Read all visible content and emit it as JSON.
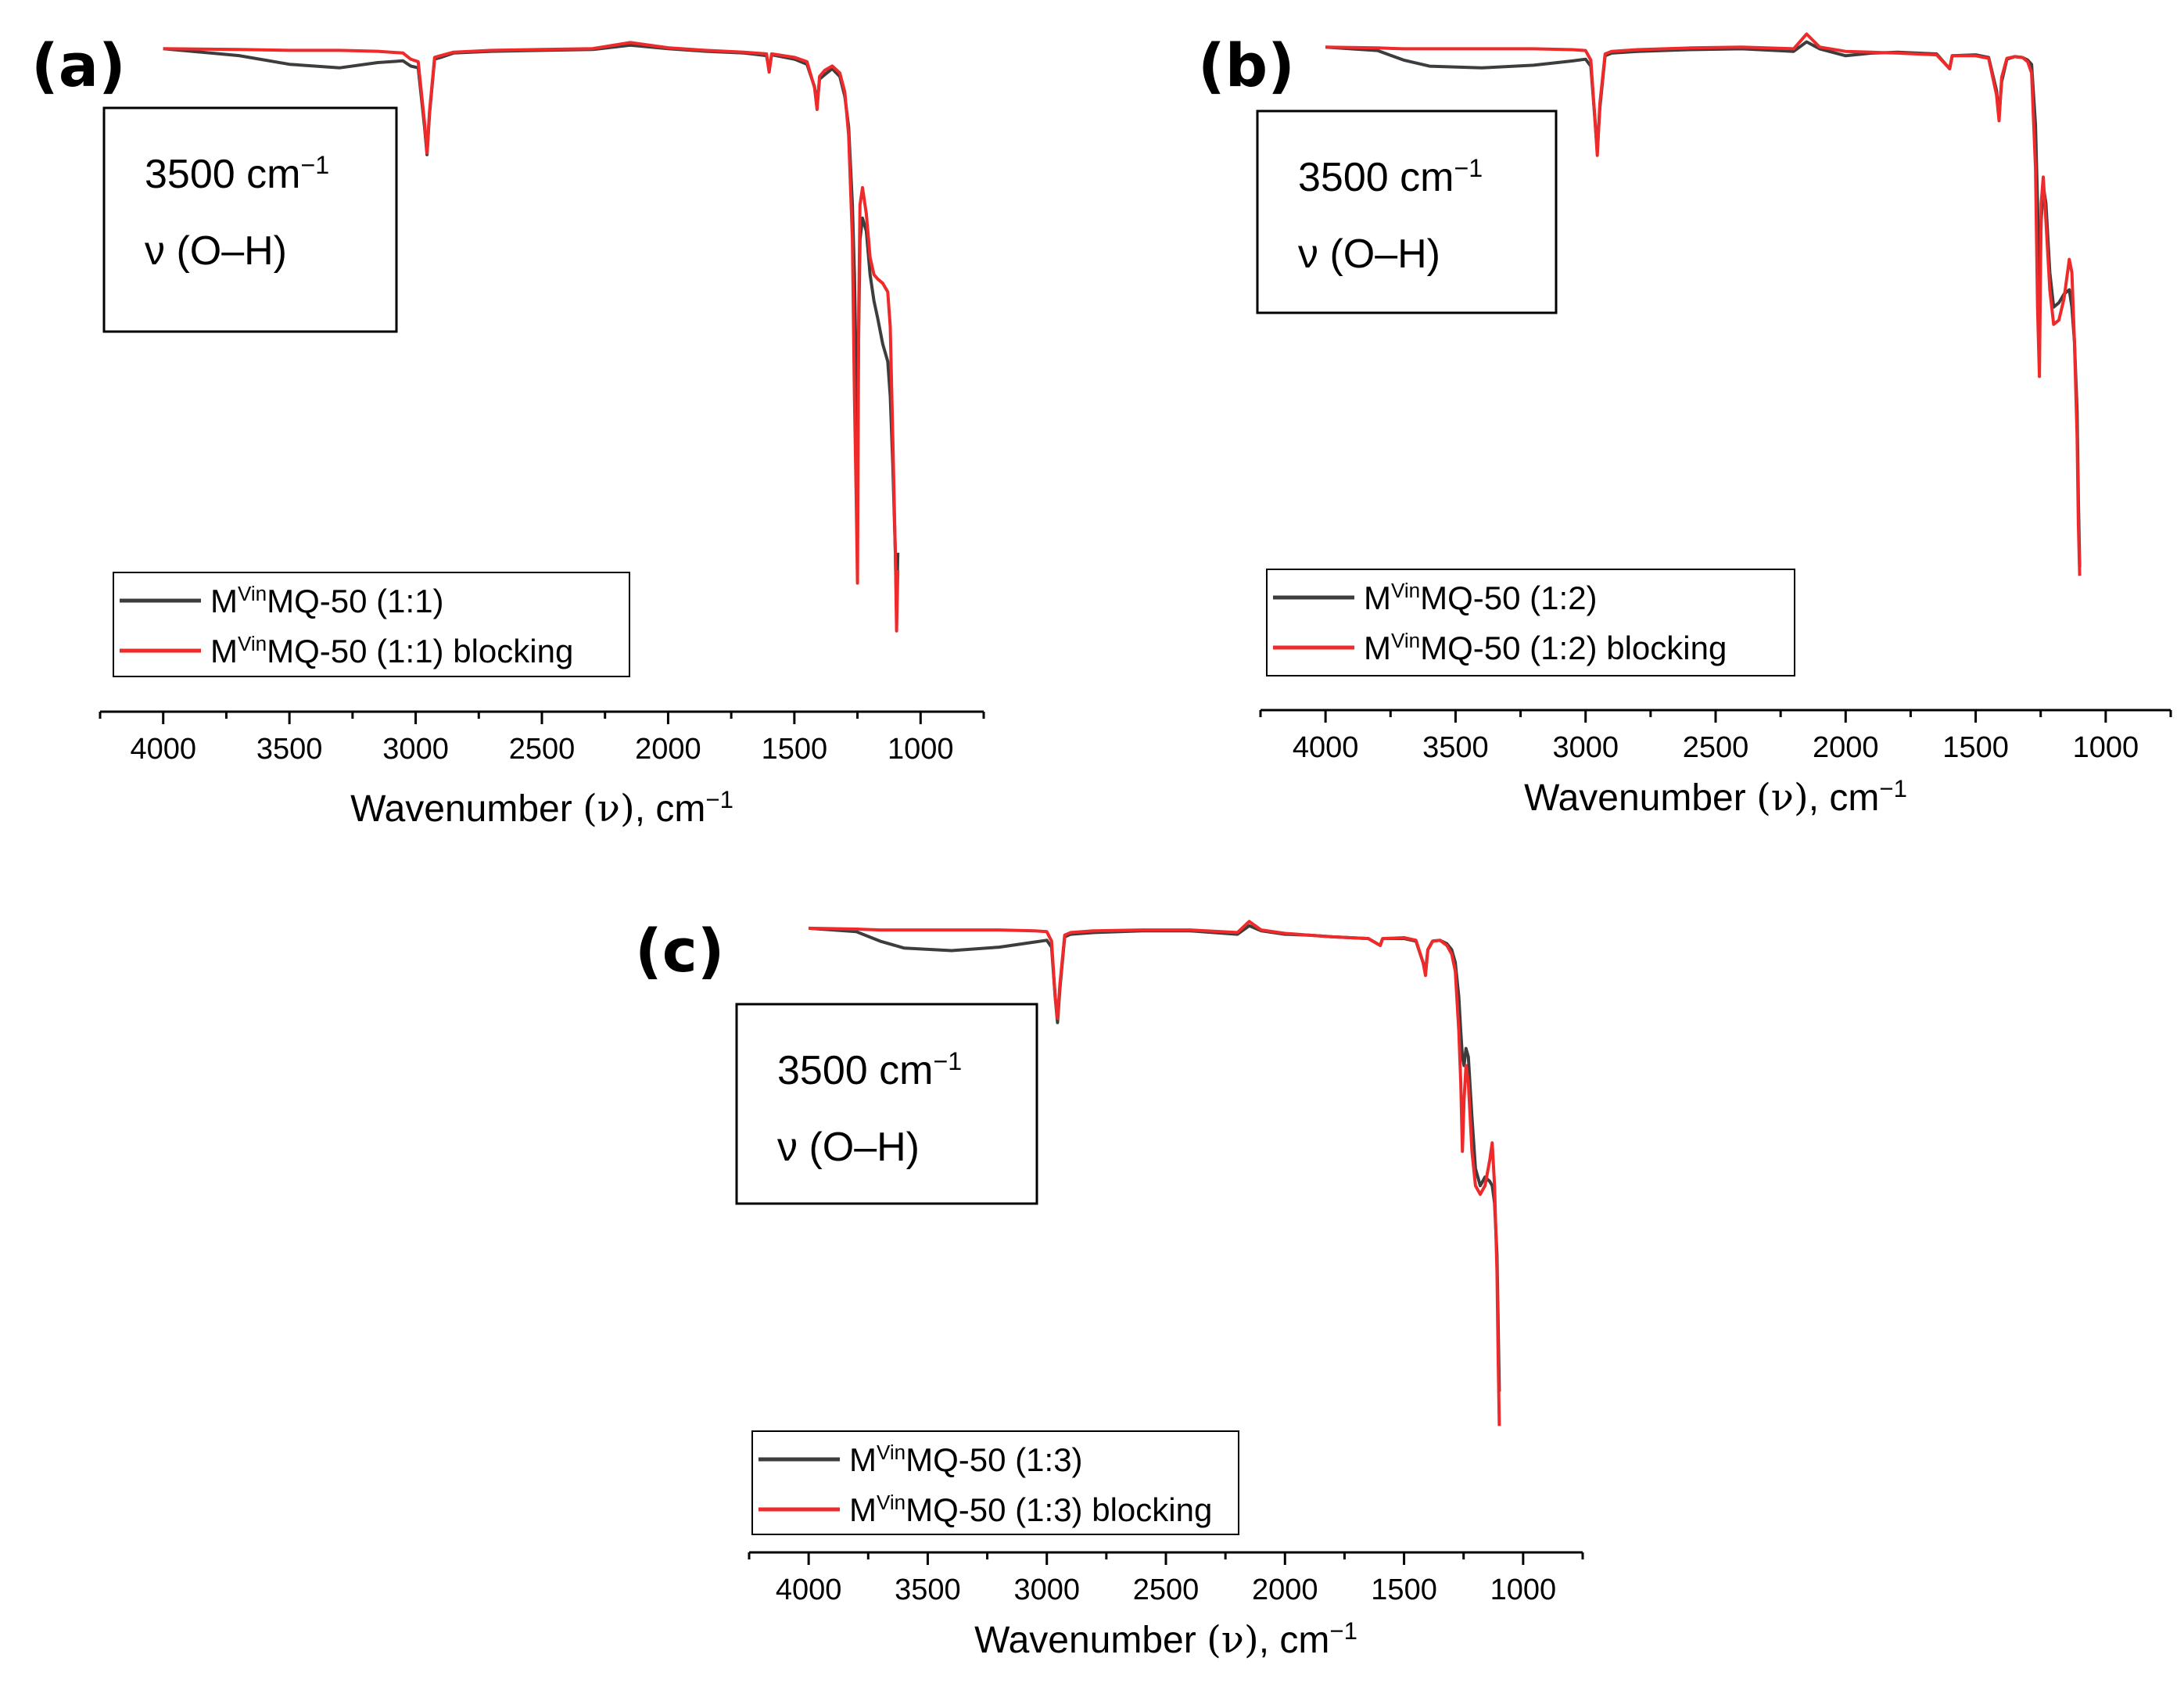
{
  "figure": {
    "colors": {
      "series_0": "#3d3d3d",
      "series_1": "#ee2a2a",
      "axis": "#000000"
    }
  },
  "chart_data": [
    {
      "panel_label": "(a)",
      "type": "line",
      "xlabel": {
        "main": "Wavenumber ",
        "symbol": "(ν)",
        "unit": ", cm",
        "unit_sup": "−1"
      },
      "xlim": [
        4250,
        750
      ],
      "xticks": [
        4000,
        3500,
        3000,
        2500,
        2000,
        1500,
        1000
      ],
      "y_axis_shown": false,
      "grid": false,
      "legend_position": "lower-left",
      "annotation": {
        "line1": "3500 cm",
        "line1_sup": "−1",
        "line2": "ν (O–H)"
      },
      "series": [
        {
          "name": "MVinMQ-50 (1:1)",
          "legend": {
            "base": "M",
            "sup": "Vin",
            "rest": "MQ-50 (1:1)"
          },
          "color": "#3d3d3d",
          "x": [
            4000,
            3700,
            3500,
            3300,
            3150,
            3050,
            3020,
            2990,
            2965,
            2955,
            2945,
            2925,
            2900,
            2850,
            2700,
            2500,
            2300,
            2150,
            2000,
            1850,
            1700,
            1610,
            1600,
            1590,
            1500,
            1450,
            1420,
            1410,
            1400,
            1380,
            1350,
            1320,
            1300,
            1285,
            1270,
            1262,
            1255,
            1250,
            1245,
            1240,
            1230,
            1215,
            1200,
            1185,
            1170,
            1150,
            1130,
            1120,
            1110,
            1100,
            1095,
            1090
          ],
          "y": [
            100.0,
            99.2,
            98.2,
            97.8,
            98.4,
            98.6,
            98.0,
            97.8,
            91.0,
            87.8,
            92.5,
            98.8,
            99.0,
            99.5,
            99.7,
            99.8,
            99.9,
            100.4,
            100.0,
            99.7,
            99.5,
            99.2,
            97.5,
            99.3,
            98.8,
            98.2,
            95.6,
            93.5,
            96.5,
            97.0,
            97.7,
            96.8,
            94.5,
            91.0,
            82.0,
            74.0,
            62.0,
            56.0,
            68.0,
            78.0,
            80.5,
            79.0,
            74.0,
            71.0,
            69.0,
            66.0,
            64.0,
            60.0,
            52.0,
            42.0,
            35.0,
            42.0
          ]
        },
        {
          "name": "MVinMQ-50 (1:1) blocking",
          "legend": {
            "base": "M",
            "sup": "Vin",
            "rest": "MQ-50 (1:1) blocking"
          },
          "color": "#ee2a2a",
          "x": [
            4000,
            3700,
            3500,
            3300,
            3150,
            3050,
            3020,
            2990,
            2965,
            2955,
            2945,
            2925,
            2900,
            2850,
            2700,
            2500,
            2300,
            2150,
            2000,
            1850,
            1700,
            1610,
            1600,
            1590,
            1500,
            1450,
            1420,
            1410,
            1400,
            1380,
            1350,
            1320,
            1300,
            1285,
            1270,
            1262,
            1255,
            1250,
            1245,
            1240,
            1230,
            1215,
            1200,
            1185,
            1170,
            1150,
            1130,
            1120,
            1110,
            1100,
            1095,
            1090
          ],
          "y": [
            100.0,
            99.9,
            99.8,
            99.8,
            99.7,
            99.5,
            98.8,
            98.5,
            91.5,
            88.0,
            92.8,
            99.0,
            99.2,
            99.6,
            99.8,
            99.9,
            100.0,
            100.7,
            100.1,
            99.8,
            99.6,
            99.4,
            97.3,
            99.4,
            99.0,
            98.5,
            95.5,
            93.0,
            96.8,
            97.5,
            98.0,
            97.2,
            95.0,
            90.0,
            78.0,
            60.0,
            48.0,
            38.5,
            70.0,
            82.0,
            84.0,
            81.0,
            76.0,
            74.0,
            73.5,
            73.0,
            72.0,
            68.0,
            55.0,
            42.0,
            33.0,
            40.0
          ]
        }
      ]
    },
    {
      "panel_label": "(b)",
      "type": "line",
      "xlabel": {
        "main": "Wavenumber ",
        "symbol": "(ν)",
        "unit": ", cm",
        "unit_sup": "−1"
      },
      "xlim": [
        4250,
        750
      ],
      "xticks": [
        4000,
        3500,
        3000,
        2500,
        2000,
        1500,
        1000
      ],
      "y_axis_shown": false,
      "grid": false,
      "legend_position": "lower-left",
      "annotation": {
        "line1": "3500 cm",
        "line1_sup": "−1",
        "line2": "ν (O–H)"
      },
      "series": [
        {
          "name": "MVinMQ-50 (1:2)",
          "legend": {
            "base": "M",
            "sup": "Vin",
            "rest": "MQ-50 (1:2)"
          },
          "color": "#3d3d3d",
          "x": [
            4000,
            3800,
            3700,
            3600,
            3400,
            3200,
            3050,
            3000,
            2980,
            2965,
            2955,
            2945,
            2925,
            2900,
            2800,
            2600,
            2400,
            2200,
            2150,
            2100,
            2000,
            1900,
            1800,
            1650,
            1600,
            1590,
            1500,
            1450,
            1420,
            1410,
            1400,
            1380,
            1350,
            1320,
            1300,
            1285,
            1270,
            1262,
            1255,
            1248,
            1240,
            1230,
            1215,
            1200,
            1180,
            1160,
            1140,
            1130,
            1120,
            1110,
            1105,
            1100
          ],
          "y": [
            100.0,
            99.6,
            98.5,
            97.8,
            97.6,
            97.9,
            98.4,
            98.6,
            97.8,
            92.0,
            88.0,
            93.0,
            99.0,
            99.3,
            99.5,
            99.7,
            99.8,
            99.5,
            100.6,
            99.8,
            99.0,
            99.3,
            99.4,
            99.2,
            97.5,
            99.0,
            99.1,
            98.8,
            95.0,
            92.0,
            96.0,
            98.6,
            98.9,
            98.8,
            98.5,
            98.0,
            91.0,
            82.0,
            72.0,
            80.0,
            84.0,
            82.0,
            74.0,
            70.0,
            70.5,
            71.5,
            72.0,
            70.0,
            66.0,
            58.0,
            48.0,
            40.0
          ]
        },
        {
          "name": "MVinMQ-50 (1:2) blocking",
          "legend": {
            "base": "M",
            "sup": "Vin",
            "rest": "MQ-50 (1:2) blocking"
          },
          "color": "#ee2a2a",
          "x": [
            4000,
            3800,
            3700,
            3600,
            3400,
            3200,
            3050,
            3000,
            2980,
            2965,
            2955,
            2945,
            2925,
            2900,
            2800,
            2600,
            2400,
            2200,
            2150,
            2100,
            2000,
            1900,
            1800,
            1650,
            1600,
            1590,
            1500,
            1450,
            1420,
            1410,
            1400,
            1380,
            1350,
            1320,
            1300,
            1285,
            1270,
            1262,
            1255,
            1248,
            1240,
            1230,
            1215,
            1200,
            1180,
            1160,
            1140,
            1130,
            1120,
            1110,
            1105,
            1100
          ],
          "y": [
            100.0,
            99.9,
            99.8,
            99.8,
            99.8,
            99.8,
            99.7,
            99.6,
            98.5,
            92.0,
            87.5,
            93.5,
            99.2,
            99.5,
            99.7,
            99.9,
            100.0,
            99.8,
            101.5,
            100.0,
            99.5,
            99.4,
            99.3,
            99.1,
            97.5,
            99.0,
            99.0,
            98.7,
            94.5,
            91.5,
            96.5,
            98.7,
            98.9,
            98.8,
            98.3,
            97.0,
            86.0,
            70.0,
            62.0,
            82.0,
            85.0,
            80.0,
            72.0,
            68.0,
            68.5,
            71.0,
            75.5,
            74.0,
            66.0,
            55.0,
            45.0,
            39.0
          ]
        }
      ]
    },
    {
      "panel_label": "(c)",
      "type": "line",
      "xlabel": {
        "main": "Wavenumber ",
        "symbol": "(ν)",
        "unit": ", cm",
        "unit_sup": "−1"
      },
      "xlim": [
        4250,
        750
      ],
      "xticks": [
        4000,
        3500,
        3000,
        2500,
        2000,
        1500,
        1000
      ],
      "y_axis_shown": false,
      "grid": false,
      "legend_position": "lower-left",
      "annotation": {
        "line1": "3500 cm",
        "line1_sup": "−1",
        "line2": "ν (O–H)"
      },
      "series": [
        {
          "name": "MVinMQ-50 (1:3)",
          "legend": {
            "base": "M",
            "sup": "Vin",
            "rest": "MQ-50 (1:3)"
          },
          "color": "#3d3d3d",
          "x": [
            4000,
            3800,
            3700,
            3600,
            3400,
            3200,
            3050,
            3000,
            2980,
            2965,
            2955,
            2945,
            2925,
            2900,
            2800,
            2600,
            2400,
            2200,
            2150,
            2100,
            2000,
            1900,
            1800,
            1650,
            1600,
            1590,
            1500,
            1450,
            1420,
            1410,
            1400,
            1380,
            1350,
            1320,
            1300,
            1285,
            1270,
            1262,
            1255,
            1248,
            1240,
            1230,
            1215,
            1200,
            1180,
            1160,
            1140,
            1130,
            1120,
            1110,
            1105,
            1100
          ],
          "y": [
            100.0,
            99.6,
            98.5,
            97.7,
            97.4,
            97.8,
            98.4,
            98.6,
            97.8,
            92.0,
            89.0,
            93.0,
            99.0,
            99.3,
            99.5,
            99.7,
            99.7,
            99.3,
            100.3,
            99.7,
            99.3,
            99.2,
            99.0,
            98.8,
            98.0,
            98.8,
            98.8,
            98.5,
            96.0,
            95.0,
            97.5,
            98.5,
            98.6,
            98.2,
            97.5,
            96.0,
            92.0,
            88.0,
            85.0,
            84.0,
            86.0,
            85.0,
            78.0,
            72.0,
            70.0,
            71.0,
            70.5,
            70.0,
            68.0,
            62.0,
            54.0,
            46.0
          ]
        },
        {
          "name": "MVinMQ-50 (1:3) blocking",
          "legend": {
            "base": "M",
            "sup": "Vin",
            "rest": "MQ-50 (1:3) blocking"
          },
          "color": "#ee2a2a",
          "x": [
            4000,
            3800,
            3700,
            3600,
            3400,
            3200,
            3050,
            3000,
            2980,
            2965,
            2955,
            2945,
            2925,
            2900,
            2800,
            2600,
            2400,
            2200,
            2150,
            2100,
            2000,
            1900,
            1800,
            1650,
            1600,
            1590,
            1500,
            1450,
            1420,
            1410,
            1400,
            1380,
            1350,
            1320,
            1300,
            1285,
            1270,
            1262,
            1255,
            1248,
            1240,
            1230,
            1215,
            1200,
            1180,
            1160,
            1140,
            1130,
            1120,
            1110,
            1105,
            1100
          ],
          "y": [
            100.0,
            99.9,
            99.8,
            99.8,
            99.8,
            99.8,
            99.7,
            99.6,
            98.5,
            92.0,
            89.5,
            93.5,
            99.2,
            99.5,
            99.7,
            99.8,
            99.8,
            99.5,
            100.8,
            99.8,
            99.4,
            99.2,
            99.0,
            98.8,
            98.0,
            98.8,
            98.9,
            98.6,
            96.0,
            94.5,
            97.5,
            98.5,
            98.6,
            98.0,
            97.0,
            95.0,
            88.0,
            82.0,
            74.0,
            80.0,
            84.0,
            82.0,
            74.0,
            70.0,
            69.0,
            70.0,
            73.0,
            75.0,
            70.0,
            60.0,
            50.0,
            42.0
          ]
        }
      ]
    }
  ]
}
